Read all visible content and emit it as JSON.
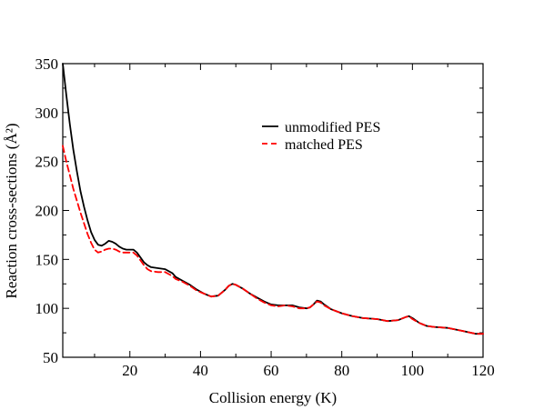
{
  "chart_data": {
    "type": "line",
    "xlabel": "Collision energy (K)",
    "ylabel": "Reaction cross-sections (Å²)",
    "xlim": [
      1,
      120
    ],
    "ylim": [
      50,
      350
    ],
    "x_ticks": [
      20,
      40,
      60,
      80,
      100,
      120
    ],
    "y_ticks": [
      50,
      100,
      150,
      200,
      250,
      300,
      350
    ],
    "grid": false,
    "legend_position": "top-right",
    "series": [
      {
        "name": "unmodified PES",
        "color": "#000000",
        "dash": "solid",
        "x": [
          1,
          2,
          3,
          4,
          5,
          6,
          7,
          8,
          9,
          10,
          11,
          12,
          13,
          14,
          15,
          16,
          17,
          18,
          19,
          20,
          21,
          22,
          23,
          24,
          25,
          26,
          28,
          30,
          31,
          32,
          33,
          35,
          37,
          39,
          41,
          43,
          45,
          47,
          48,
          49,
          50,
          52,
          54,
          56,
          58,
          60,
          62,
          64,
          66,
          68,
          70,
          71,
          72,
          73,
          74,
          75,
          77,
          80,
          83,
          86,
          90,
          93,
          96,
          98,
          99,
          100,
          102,
          104,
          106,
          110,
          114,
          118,
          120
        ],
        "y": [
          350,
          318,
          288,
          262,
          240,
          220,
          204,
          190,
          178,
          170,
          165,
          164,
          166,
          169,
          168,
          166,
          163,
          161,
          160,
          160,
          160,
          157,
          152,
          147,
          144,
          142,
          141,
          140,
          138,
          136,
          132,
          128,
          124,
          119,
          115,
          112,
          113,
          119,
          123,
          125,
          124,
          120,
          115,
          111,
          107,
          104,
          103,
          103,
          103,
          101,
          100,
          101,
          104,
          108,
          107,
          104,
          99,
          95,
          92,
          90,
          89,
          87,
          88,
          91,
          92,
          90,
          85,
          82,
          81,
          80,
          77,
          74,
          74
        ]
      },
      {
        "name": "matched PES",
        "color": "#ff0000",
        "dash": "dashed",
        "x": [
          1,
          2,
          3,
          4,
          5,
          6,
          7,
          8,
          9,
          10,
          11,
          12,
          13,
          14,
          15,
          16,
          17,
          18,
          19,
          20,
          21,
          22,
          23,
          24,
          25,
          26,
          28,
          30,
          31,
          32,
          33,
          35,
          37,
          39,
          41,
          43,
          45,
          47,
          48,
          49,
          50,
          52,
          54,
          56,
          58,
          60,
          62,
          64,
          66,
          68,
          70,
          71,
          72,
          73,
          74,
          75,
          77,
          80,
          83,
          86,
          90,
          93,
          96,
          98,
          99,
          100,
          102,
          104,
          106,
          110,
          114,
          118,
          120
        ],
        "y": [
          266,
          250,
          236,
          222,
          210,
          198,
          187,
          176,
          167,
          160,
          157,
          158,
          160,
          161,
          161,
          160,
          158,
          157,
          157,
          157,
          157,
          154,
          149,
          144,
          140,
          138,
          137,
          137,
          135,
          133,
          130,
          127,
          123,
          118,
          115,
          112,
          113,
          119,
          123,
          125,
          124,
          120,
          115,
          110,
          106,
          103,
          102,
          103,
          102,
          100,
          100,
          101,
          104,
          107,
          106,
          103,
          99,
          95,
          92,
          90,
          89,
          87,
          88,
          91,
          92,
          89,
          85,
          82,
          81,
          80,
          77,
          74,
          74
        ]
      }
    ]
  }
}
